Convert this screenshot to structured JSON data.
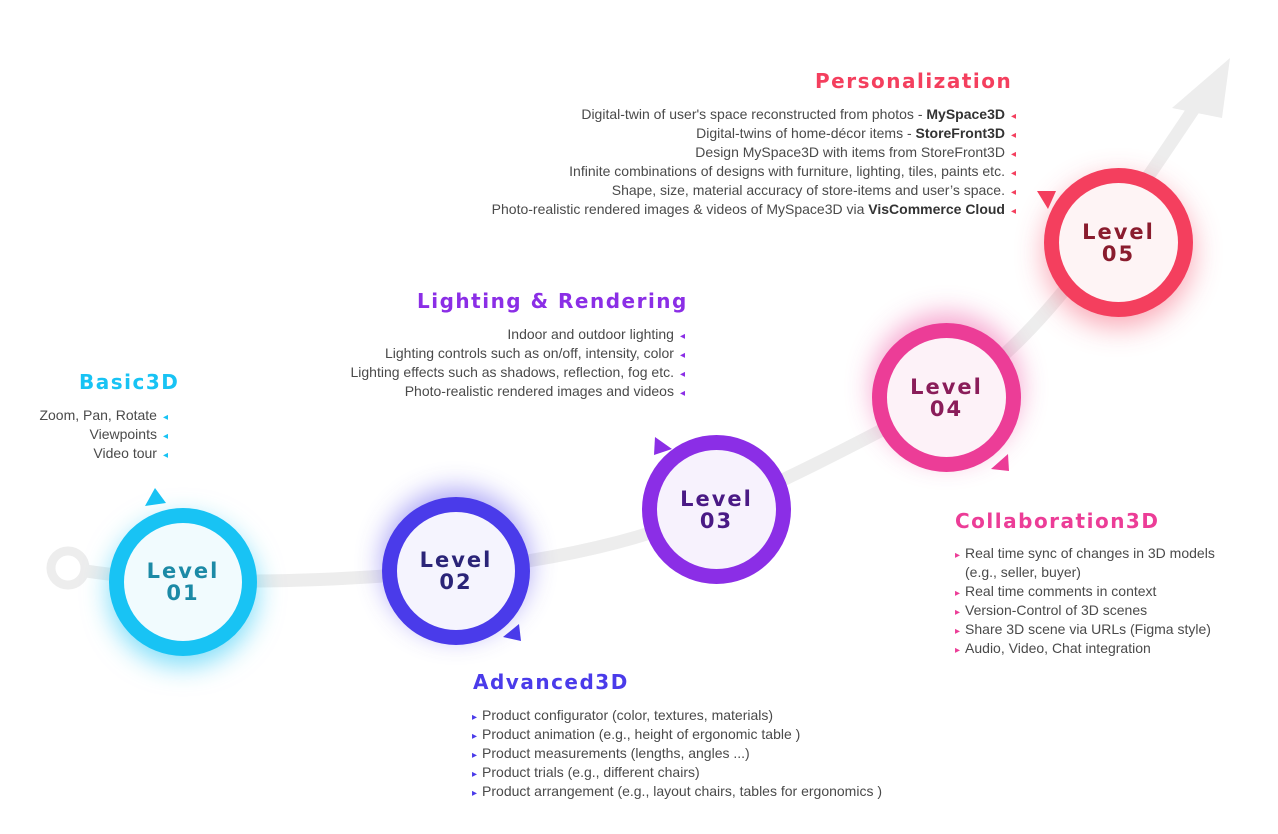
{
  "colors": {
    "level1": "#18c3f4",
    "level2": "#4a3bea",
    "level3": "#8b2ee6",
    "level4": "#ec3d97",
    "level5": "#f43f5e",
    "path": "#ededed"
  },
  "levels": [
    {
      "label": "Level",
      "number": "01"
    },
    {
      "label": "Level",
      "number": "02"
    },
    {
      "label": "Level",
      "number": "03"
    },
    {
      "label": "Level",
      "number": "04"
    },
    {
      "label": "Level",
      "number": "05"
    }
  ],
  "basic3d": {
    "title": "Basic3D",
    "items": [
      "Zoom, Pan, Rotate",
      "Viewpoints",
      "Video tour"
    ]
  },
  "advanced3d": {
    "title": "Advanced3D",
    "items": [
      "Product configurator (color, textures, materials)",
      "Product animation (e.g., height of ergonomic table )",
      "Product measurements (lengths, angles ...)",
      "Product trials (e.g., different chairs)",
      "Product arrangement (e.g., layout chairs, tables for ergonomics )"
    ]
  },
  "lighting": {
    "title": "Lighting & Rendering",
    "items": [
      "Indoor and outdoor lighting",
      "Lighting controls such as on/off, intensity, color",
      "Lighting effects such as shadows, reflection, fog etc.",
      "Photo-realistic rendered images and videos"
    ]
  },
  "collaboration": {
    "title": "Collaboration3D",
    "items": [
      "Real time sync of changes in 3D models",
      "(e.g., seller, buyer)",
      "Real time comments in context",
      "Version-Control of 3D scenes",
      "Share 3D scene via URLs (Figma style)",
      "Audio, Video, Chat integration"
    ]
  },
  "personalization": {
    "title": "Personalization",
    "items": [
      {
        "text": "Digital-twin of user's space reconstructed from photos - ",
        "bold": "MySpace3D"
      },
      {
        "text": "Digital-twins of home-décor items - ",
        "bold": "StoreFront3D"
      },
      {
        "text": "Design MySpace3D with items from StoreFront3D",
        "bold": ""
      },
      {
        "text": "Infinite combinations of designs with furniture, lighting, tiles, paints etc.",
        "bold": ""
      },
      {
        "text": "Shape, size, material accuracy of store-items and user’s space.",
        "bold": ""
      },
      {
        "text": "Photo-realistic rendered images & videos of MySpace3D via ",
        "bold": "VisCommerce Cloud"
      }
    ]
  }
}
